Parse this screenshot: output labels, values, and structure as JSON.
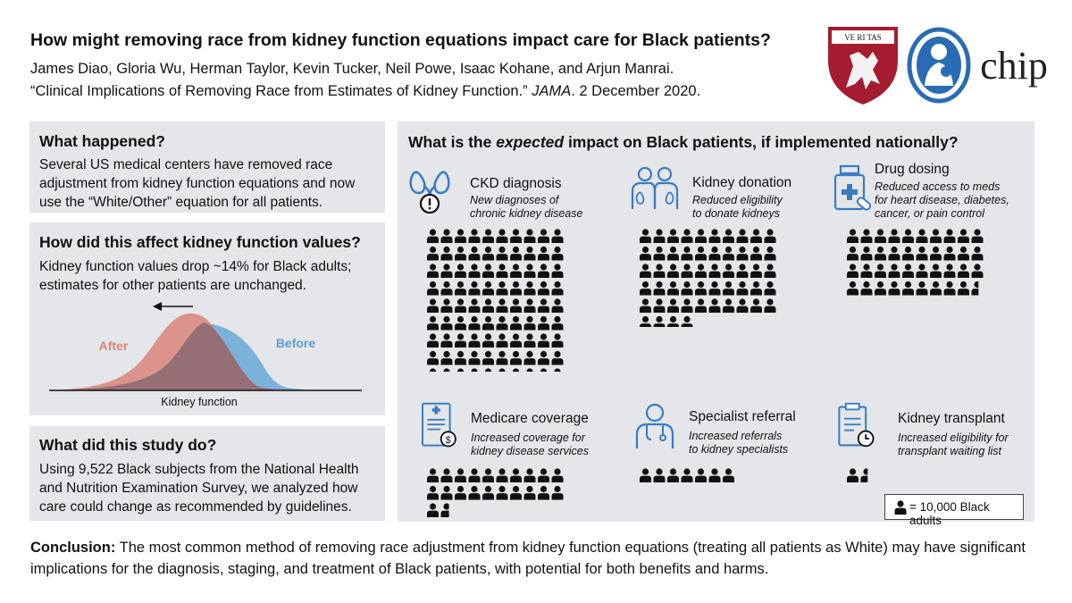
{
  "header": {
    "title": "How might removing race from kidney function equations impact care for Black patients?",
    "authors": "James Diao, Gloria Wu, Herman Taylor, Kevin Tucker, Neil Powe, Isaac Kohane, and Arjun Manrai.",
    "citation_pre": "“Clinical Implications of Removing Race from Estimates of Kidney Function.” ",
    "citation_journal": "JAMA",
    "citation_post": ". 2 December 2020."
  },
  "logos": {
    "harvard_shield_text": "VE RI TAS",
    "chip_text": "chip"
  },
  "what_happened": {
    "heading": "What happened?",
    "body": "Several US medical centers have removed race adjustment from kidney function equations and now use the “White/Other” equation for all patients."
  },
  "affect": {
    "heading": "How did this affect kidney function values?",
    "body": "Kidney function values drop ~14% for Black adults; estimates for other patients are unchanged.",
    "after_label": "After",
    "before_label": "Before",
    "axis_label": "Kidney function",
    "after_color": "#d9847a",
    "before_color": "#5a9fd4"
  },
  "study": {
    "heading": "What did this study do?",
    "body": "Using 9,522 Black subjects from the National Health and Nutrition Examination Survey, we analyzed how care could change as recommended by guidelines."
  },
  "impact": {
    "heading_pre": "What is the ",
    "heading_em": "expected",
    "heading_post": " impact on Black patients, if implemented nationally?",
    "items": [
      {
        "title": "CKD diagnosis",
        "desc": [
          "New diagnoses of",
          "chronic kidney disease"
        ],
        "icon": "kidney-icon",
        "icons_shown": 103.4,
        "cols": 10
      },
      {
        "title": "Kidney donation",
        "desc": [
          "Reduced eligibility",
          "to donate kidneys"
        ],
        "icon": "donors-icon",
        "icons_shown": 54,
        "cols": 10
      },
      {
        "title": "Drug dosing",
        "desc": [
          "Reduced access to meds",
          "for heart disease, diabetes,",
          "cancer, or pain control"
        ],
        "icon": "medicine-bottle-icon",
        "icons_shown": 39.6,
        "cols": 10
      },
      {
        "title": "Medicare coverage",
        "desc": [
          "Increased coverage for",
          "kidney disease services"
        ],
        "icon": "insurance-form-icon",
        "icons_shown": 21.7,
        "cols": 10
      },
      {
        "title": "Specialist referral",
        "desc": [
          "Increased referrals",
          "to kidney specialists"
        ],
        "icon": "doctor-icon",
        "icons_shown": 7,
        "cols": 10
      },
      {
        "title": "Kidney transplant",
        "desc": [
          "Increased eligibility for",
          "transplant waiting list"
        ],
        "icon": "clipboard-clock-icon",
        "icons_shown": 1.6,
        "cols": 10
      }
    ],
    "legend": "= 10,000 Black adults"
  },
  "conclusion": {
    "label": "Conclusion:",
    "text": " The most common method of removing race adjustment from kidney function equations (treating all patients as White) may have significant implications for the diagnosis, staging, and treatment of Black patients, with potential for both benefits and harms."
  },
  "colors": {
    "panel_bg": "#e4e6e9",
    "icon_blue": "#3a7cc0",
    "harvard_red": "#a51c30",
    "person": "#111111"
  }
}
